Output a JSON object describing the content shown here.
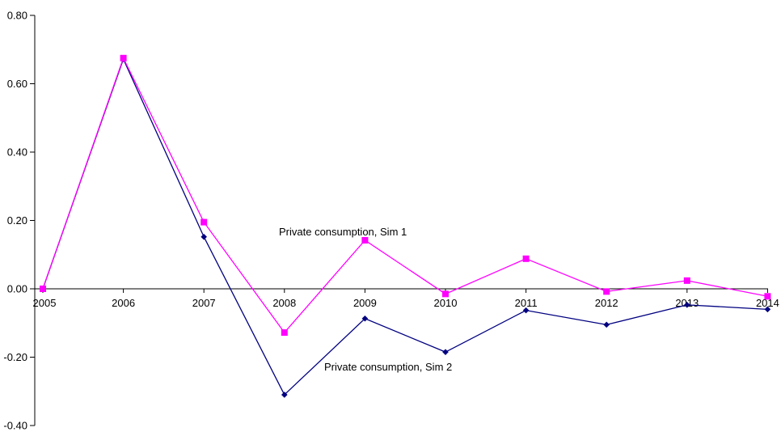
{
  "chart_data": {
    "type": "line",
    "title": "",
    "xlabel": "",
    "ylabel": "",
    "categories": [
      "2005",
      "2006",
      "2007",
      "2008",
      "2009",
      "2010",
      "2011",
      "2012",
      "2013",
      "2014"
    ],
    "y_ticks": [
      "0.80",
      "0.60",
      "0.40",
      "0.20",
      "0.00",
      "-0.20",
      "-0.40"
    ],
    "ylim": [
      -0.4,
      0.8
    ],
    "grid": false,
    "legend": "none",
    "series": [
      {
        "name": "Private consumption, Sim 1",
        "color": "#ff00ff",
        "marker": "square",
        "values": [
          0.0,
          0.675,
          0.195,
          -0.128,
          0.142,
          -0.015,
          0.088,
          -0.008,
          0.024,
          -0.022
        ]
      },
      {
        "name": "Private consumption, Sim 2",
        "color": "#000080",
        "marker": "diamond",
        "values": [
          0.0,
          0.672,
          0.152,
          -0.31,
          -0.087,
          -0.185,
          -0.063,
          -0.105,
          -0.047,
          -0.06
        ]
      }
    ]
  }
}
